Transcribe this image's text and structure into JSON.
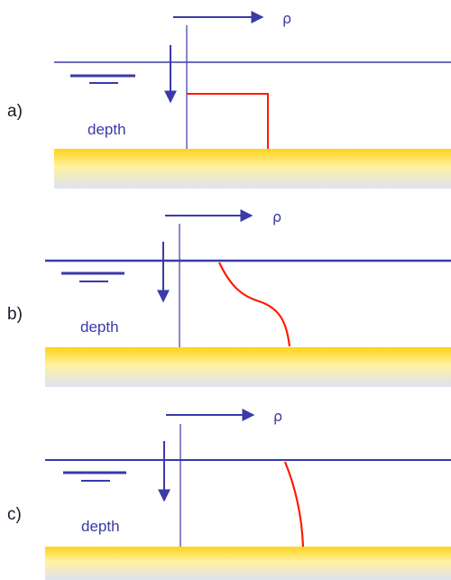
{
  "colors": {
    "line": "#3a3aa8",
    "profile": "#ff1a00",
    "sediment_top": "#ffd21a",
    "sediment_bottom": "#dfe3f3"
  },
  "panels": [
    {
      "label": "a)",
      "depth_label": "depth",
      "rho_label": "ρ",
      "profile_shape": "step-uniform"
    },
    {
      "label": "b)",
      "depth_label": "depth",
      "rho_label": "ρ",
      "profile_shape": "two-layer-smooth"
    },
    {
      "label": "c)",
      "depth_label": "depth",
      "rho_label": "ρ",
      "profile_shape": "linear-gradient"
    }
  ]
}
